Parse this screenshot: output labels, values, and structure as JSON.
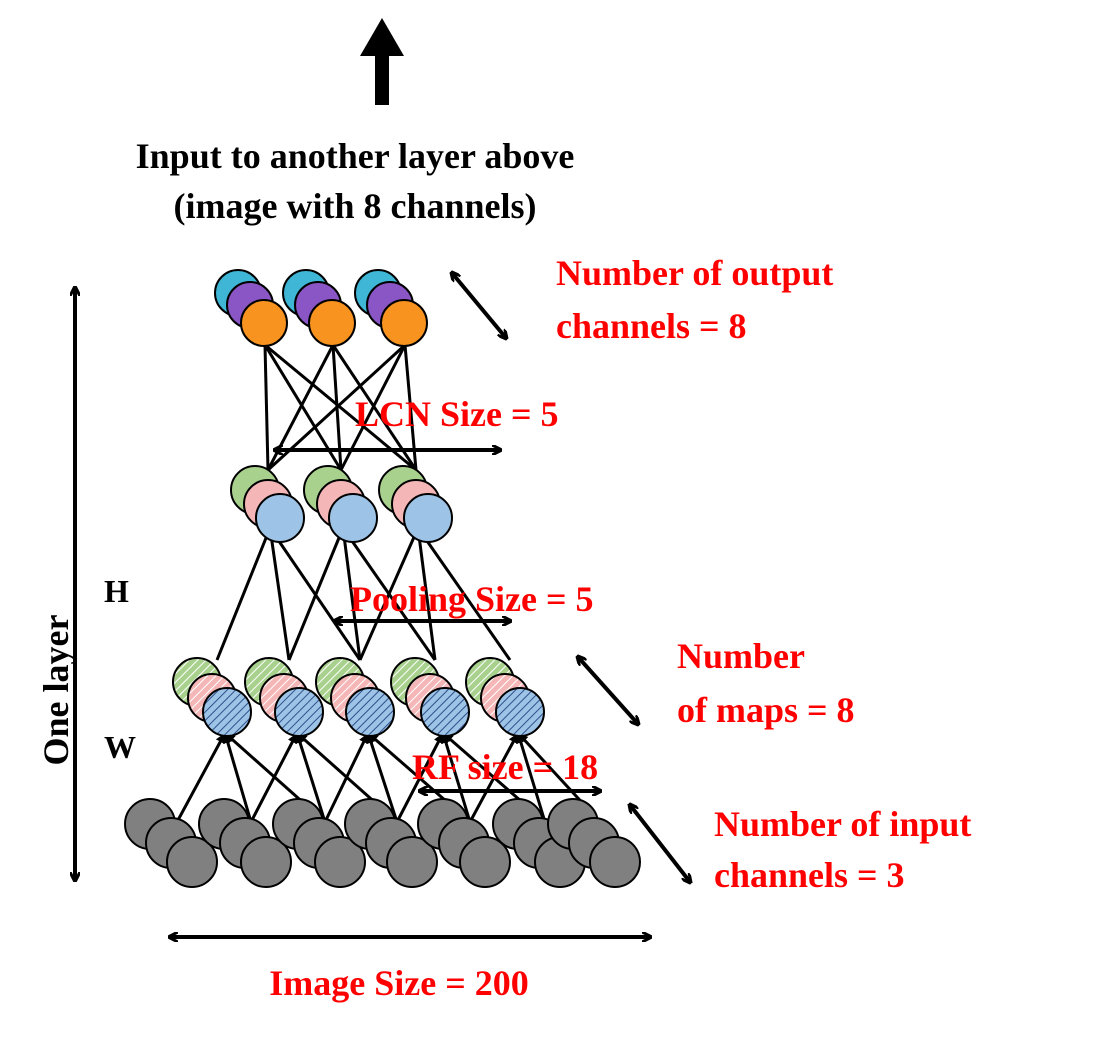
{
  "top_caption": {
    "line1": "Input to another layer above",
    "line2": "(image with 8 channels)"
  },
  "labels": {
    "output_channels_line1": "Number  of output",
    "output_channels_line2": "channels = 8",
    "lcn_size": "LCN Size = 5",
    "pooling_size": "Pooling Size = 5",
    "maps_line1": "Number",
    "maps_line2": "of maps = 8",
    "rf_size": "RF size = 18",
    "input_channels_line1": "Number  of input",
    "input_channels_line2": "channels = 3",
    "image_size": "Image Size = 200",
    "one_layer": "One layer",
    "h": "H",
    "w": "W"
  },
  "colors": {
    "output_back": "#3fb6d6",
    "output_mid": "#8a55c4",
    "output_front": "#f7931e",
    "pool_back": "#a9d18e",
    "pool_mid": "#f4b6b6",
    "pool_front": "#9dc3e6",
    "input_gray": "#808080",
    "label_red": "#ff0000"
  }
}
